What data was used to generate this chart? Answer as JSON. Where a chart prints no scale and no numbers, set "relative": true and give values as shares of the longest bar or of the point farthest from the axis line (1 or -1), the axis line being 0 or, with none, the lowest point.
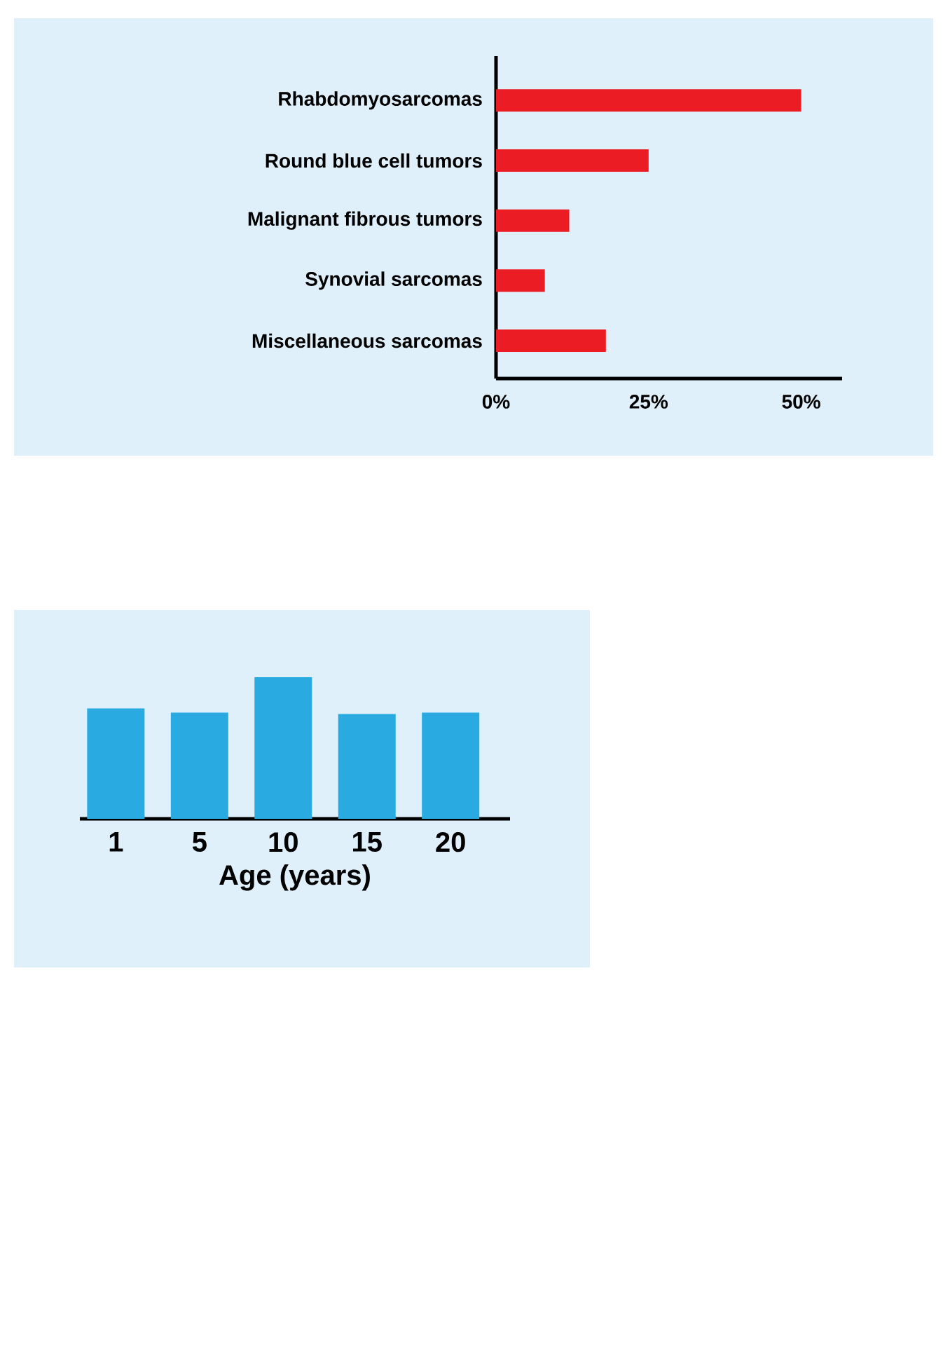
{
  "chart_data": [
    {
      "type": "bar",
      "orientation": "horizontal",
      "categories": [
        "Rhabdomyosarcomas",
        "Round blue cell tumors",
        "Malignant fibrous tumors",
        "Synovial sarcomas",
        "Miscellaneous sarcomas"
      ],
      "values": [
        50,
        25,
        12,
        8,
        18
      ],
      "color": "#ec1c24",
      "xlim": [
        0,
        56.7
      ],
      "xticks": [
        {
          "value": 0,
          "label": "0%"
        },
        {
          "value": 25,
          "label": "25%"
        },
        {
          "value": 50,
          "label": "50%"
        }
      ]
    },
    {
      "type": "bar",
      "relative": true,
      "categories": [
        "1",
        "5",
        "10",
        "15",
        "20"
      ],
      "xlabel": "Age (years)",
      "values": [
        0.78,
        0.75,
        1,
        0.74,
        0.75
      ],
      "color": "#29abe2"
    }
  ]
}
